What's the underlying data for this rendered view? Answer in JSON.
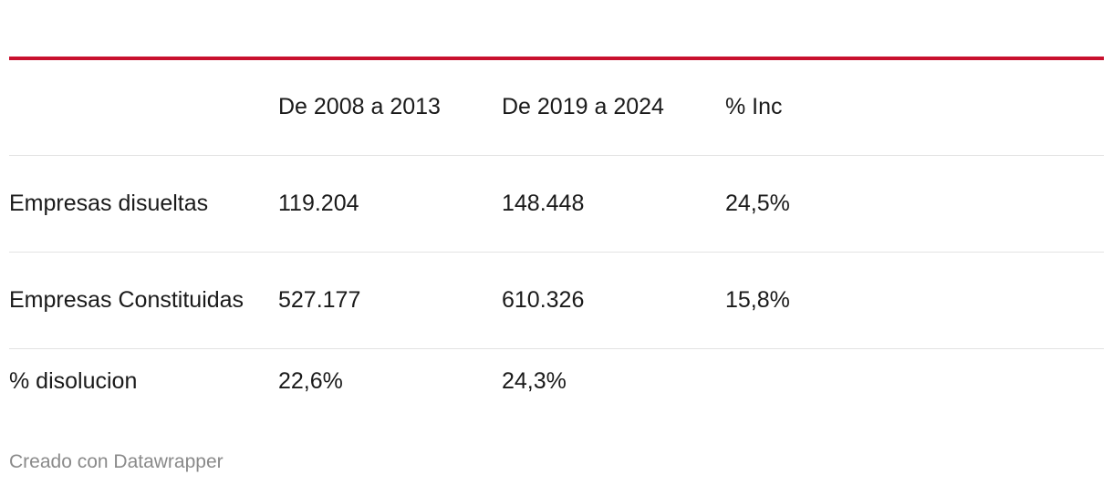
{
  "chart_data": {
    "type": "table",
    "columns": [
      "",
      "De 2008 a 2013",
      "De 2019 a 2024",
      "% Inc"
    ],
    "rows": [
      {
        "label": "Empresas disueltas",
        "values": [
          "119.204",
          "148.448",
          "24,5%"
        ]
      },
      {
        "label": "Empresas Constituidas",
        "values": [
          "527.177",
          "610.326",
          "15,8%"
        ]
      },
      {
        "label": "% disolucion",
        "values": [
          "22,6%",
          "24,3%",
          ""
        ]
      }
    ]
  },
  "footer": {
    "credit": "Creado con Datawrapper"
  },
  "colors": {
    "accent": "#c8102e",
    "rule": "#e3e3e3",
    "credit": "#8a8a8a"
  }
}
